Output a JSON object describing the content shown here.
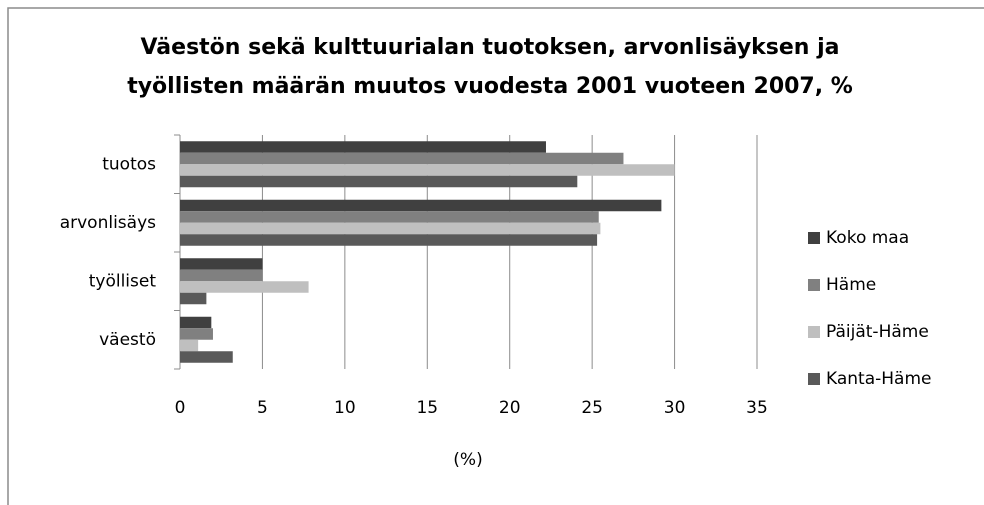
{
  "chart_data": {
    "type": "barh",
    "title": [
      "Väestön sekä kulttuurialan tuotoksen, arvonlisäyksen ja",
      "työllisten määrän muutos vuodesta 2001 vuoteen 2007, %"
    ],
    "x_label": "(%)",
    "categories": [
      "tuotos",
      "arvonlisäys",
      "työlliset",
      "väestö"
    ],
    "series": [
      {
        "name": "Koko maa",
        "color": "#404040",
        "values": [
          22.2,
          29.2,
          5.0,
          1.9
        ]
      },
      {
        "name": "Häme",
        "color": "#808080",
        "values": [
          26.9,
          25.4,
          5.0,
          2.0
        ]
      },
      {
        "name": "Päijät-Häme",
        "color": "#bfbfbf",
        "values": [
          30.0,
          25.5,
          7.8,
          1.1
        ]
      },
      {
        "name": "Kanta-Häme",
        "color": "#595959",
        "values": [
          24.1,
          25.3,
          1.6,
          3.2
        ]
      }
    ],
    "xlim": [
      0,
      35
    ],
    "xticks": [
      0,
      5,
      10,
      15,
      20,
      25,
      30,
      35
    ],
    "grid": true,
    "legend": "right"
  }
}
